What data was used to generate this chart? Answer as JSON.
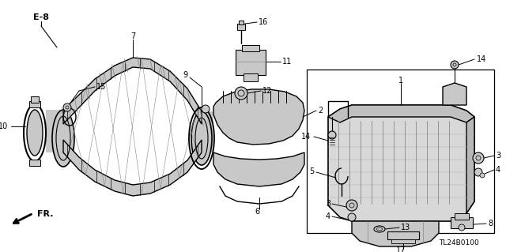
{
  "bg_color": "#ffffff",
  "line_color": "#000000",
  "gray_fill": "#c8c8c8",
  "gray_dark": "#888888",
  "gray_light": "#e8e8e8",
  "diagram_code": "TL24B0100",
  "fig_w": 6.4,
  "fig_h": 3.19,
  "dpi": 100
}
